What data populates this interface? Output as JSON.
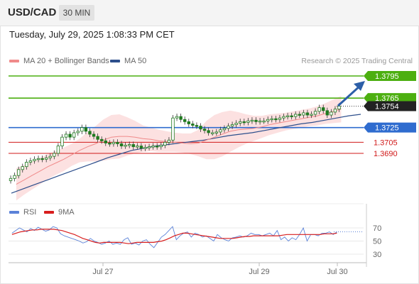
{
  "header": {
    "symbol": "USD/CAD",
    "timeframe": "30 MIN"
  },
  "datetime": "Tuesday, July 29, 2025 1:08:33 PM CET",
  "legend": {
    "bb_label": "MA 20 + Bollinger Bands",
    "bb_color": "#f08a8a",
    "ma50_label": "MA 50",
    "ma50_color": "#2d4f8c"
  },
  "watermark": "Research © 2025 Trading Central",
  "colors": {
    "green": "#4caf10",
    "blue": "#2f6ccf",
    "red": "#d01818",
    "dark": "#222222",
    "arrow": "#2d5fa8"
  },
  "chart_data": [
    {
      "type": "line",
      "x_tick_labels": [
        "Jul 27",
        "Jul 29",
        "Jul 30"
      ],
      "ylim": [
        1.364,
        1.381
      ],
      "levels": [
        {
          "label": "1.3795",
          "value": 1.3795,
          "style": "green-tag"
        },
        {
          "label": "1.3765",
          "value": 1.3765,
          "style": "green-tag"
        },
        {
          "label": "1.3754",
          "value": 1.3754,
          "style": "dark-tag"
        },
        {
          "label": "1.3725",
          "value": 1.3725,
          "style": "blue-tag"
        },
        {
          "label": "1.3705",
          "value": 1.3705,
          "style": "red-text"
        },
        {
          "label": "1.3690",
          "value": 1.369,
          "style": "red-text"
        }
      ],
      "series": [
        {
          "name": "Price",
          "values": [
            1.3656,
            1.366,
            1.3668,
            1.3672,
            1.3678,
            1.368,
            1.3682,
            1.3683,
            1.3682,
            1.3684,
            1.3686,
            1.369,
            1.37,
            1.3712,
            1.3716,
            1.3712,
            1.3718,
            1.372,
            1.3725,
            1.372,
            1.3716,
            1.3713,
            1.3709,
            1.3707,
            1.3704,
            1.3703,
            1.3705,
            1.3703,
            1.37,
            1.3701,
            1.3702,
            1.3699,
            1.37,
            1.3697,
            1.3698,
            1.3699,
            1.37,
            1.3699,
            1.3701,
            1.3705,
            1.3708,
            1.3738,
            1.374,
            1.3736,
            1.3733,
            1.373,
            1.3728,
            1.3727,
            1.3723,
            1.3721,
            1.3718,
            1.3718,
            1.3719,
            1.3722,
            1.3724,
            1.3727,
            1.3729,
            1.3731,
            1.3733,
            1.3732,
            1.3734,
            1.3735,
            1.3733,
            1.3734,
            1.3734,
            1.3736,
            1.3737,
            1.3736,
            1.3738,
            1.374,
            1.3741,
            1.374,
            1.3743,
            1.3742,
            1.3745,
            1.3742,
            1.3743,
            1.3747,
            1.3752,
            1.3748,
            1.3742,
            1.3746,
            1.375,
            1.3754
          ]
        },
        {
          "name": "MA 20",
          "values": [
            1.3648,
            1.3654,
            1.366,
            1.3666,
            1.3672,
            1.3677,
            1.3682,
            1.3688,
            1.3694,
            1.3699,
            1.3703,
            1.3708,
            1.3712,
            1.3713,
            1.3713,
            1.3712,
            1.371,
            1.3709,
            1.3707,
            1.3706,
            1.3705,
            1.3704,
            1.3703,
            1.3704,
            1.3708,
            1.3712,
            1.3716,
            1.372,
            1.3722,
            1.3723,
            1.3724,
            1.3726,
            1.3729,
            1.3731,
            1.3733,
            1.3735,
            1.3737,
            1.3739,
            1.3741,
            1.3744,
            1.3747,
            1.375
          ]
        },
        {
          "name": "MA 50",
          "values": [
            1.3636,
            1.3642,
            1.3648,
            1.3654,
            1.366,
            1.3666,
            1.3672,
            1.3678,
            1.3684,
            1.3689,
            1.3694,
            1.3697,
            1.37,
            1.3702,
            1.3704,
            1.3706,
            1.3708,
            1.3711,
            1.3714,
            1.3716,
            1.3718,
            1.3721,
            1.3724,
            1.3727,
            1.373,
            1.3732,
            1.3735,
            1.3738,
            1.3741,
            1.3743
          ]
        }
      ]
    },
    {
      "type": "line",
      "legend": [
        "RSI",
        "9MA"
      ],
      "y_ticks": [
        70,
        50,
        30
      ],
      "ylim": [
        20,
        90
      ],
      "series": [
        {
          "name": "RSI",
          "color": "#5b82d8",
          "values": [
            62,
            66,
            70,
            67,
            64,
            69,
            66,
            71,
            68,
            65,
            67,
            72,
            70,
            61,
            58,
            56,
            54,
            52,
            50,
            47,
            49,
            54,
            50,
            48,
            45,
            47,
            50,
            45,
            47,
            45,
            52,
            55,
            45,
            47,
            44,
            50,
            52,
            45,
            40,
            48,
            56,
            60,
            66,
            72,
            52,
            58,
            62,
            64,
            56,
            62,
            60,
            56,
            58,
            54,
            50,
            60,
            55,
            52,
            50,
            55,
            56,
            58,
            56,
            58,
            62,
            60,
            60,
            58,
            60,
            62,
            58,
            66,
            52,
            56,
            50,
            55,
            52,
            60,
            70,
            50,
            60,
            60,
            58,
            62,
            62,
            64,
            60,
            64
          ]
        },
        {
          "name": "9MA",
          "color": "#d81e1e",
          "values": [
            60,
            62,
            64,
            65,
            66,
            67,
            67,
            68,
            68,
            68,
            68,
            67,
            66,
            64,
            62,
            60,
            57,
            54,
            52,
            50,
            48,
            47,
            48,
            48,
            48,
            48,
            48,
            47,
            46,
            47,
            48,
            48,
            48,
            48,
            48,
            49,
            50,
            52,
            55,
            58,
            60,
            62,
            62,
            61,
            60,
            59,
            58,
            57,
            56,
            55,
            54,
            54,
            54,
            54,
            55,
            56,
            57,
            57,
            58,
            58,
            58,
            58,
            58,
            58,
            58,
            59,
            60,
            60,
            60,
            60,
            60,
            60,
            60,
            60,
            60,
            61,
            61,
            61,
            62
          ]
        }
      ]
    }
  ]
}
